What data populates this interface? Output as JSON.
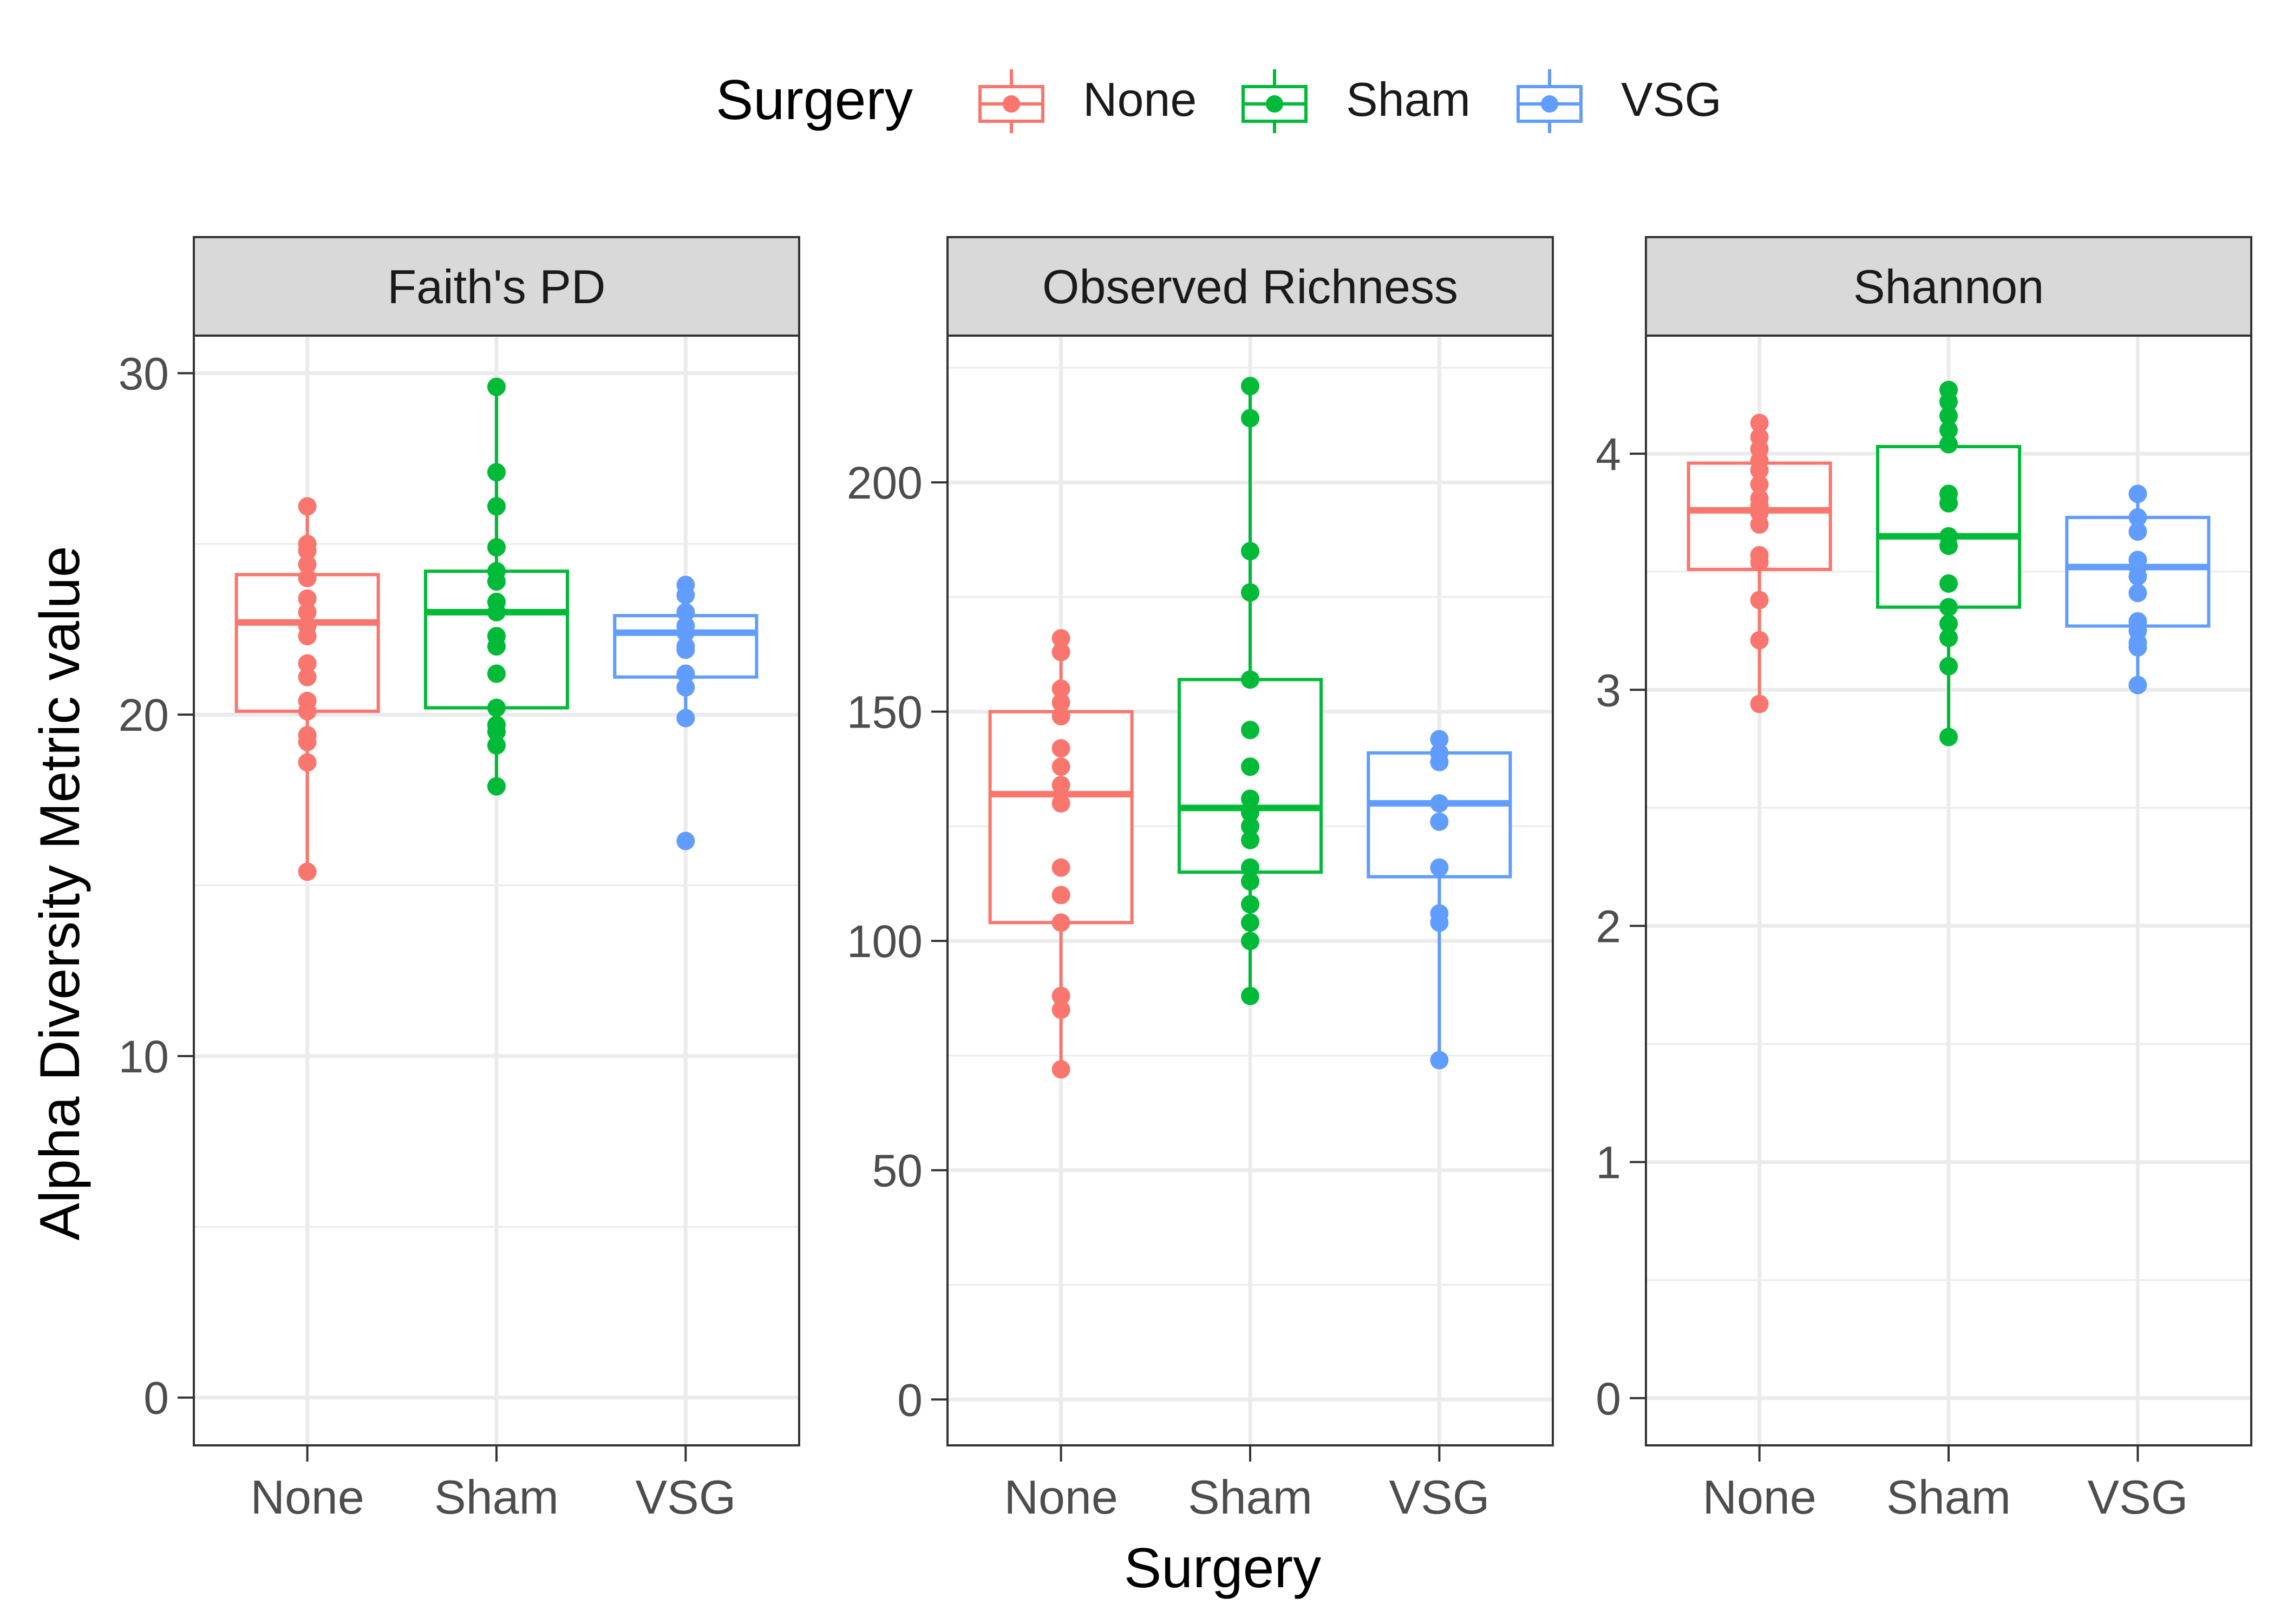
{
  "legend": {
    "title": "Surgery",
    "entries": [
      {
        "label": "None",
        "color": "#F8766D"
      },
      {
        "label": "Sham",
        "color": "#00BA38"
      },
      {
        "label": "VSG",
        "color": "#619CFF"
      }
    ]
  },
  "axes": {
    "ylabel": "Alpha Diversity Metric value",
    "xlabel": "Surgery"
  },
  "chart_data": [
    {
      "type": "box",
      "title": "Faith's PD",
      "categories": [
        "None",
        "Sham",
        "VSG"
      ],
      "ylim": [
        -1.4,
        31.1
      ],
      "yticks": [
        0,
        10,
        20,
        30
      ],
      "boxes": [
        {
          "name": "None",
          "q1": 20.1,
          "median": 22.7,
          "q3": 24.1,
          "whisker_low": 15.4,
          "whisker_high": 26.1
        },
        {
          "name": "Sham",
          "q1": 20.2,
          "median": 23.0,
          "q3": 24.2,
          "whisker_low": 17.9,
          "whisker_high": 29.6
        },
        {
          "name": "VSG",
          "q1": 21.1,
          "median": 22.4,
          "q3": 22.9,
          "whisker_low": 19.9,
          "whisker_high": 23.8
        }
      ],
      "points": [
        {
          "name": "None",
          "values": [
            26.1,
            25.0,
            24.8,
            24.4,
            24.0,
            23.4,
            23.0,
            22.6,
            22.3,
            21.5,
            21.1,
            20.4,
            20.1,
            19.4,
            19.2,
            18.6,
            15.4
          ]
        },
        {
          "name": "Sham",
          "values": [
            29.6,
            27.1,
            26.1,
            24.9,
            24.2,
            23.9,
            23.3,
            23.0,
            22.3,
            22.0,
            21.2,
            20.2,
            19.7,
            19.5,
            19.1,
            17.9
          ]
        },
        {
          "name": "VSG",
          "values": [
            23.8,
            23.5,
            23.0,
            22.6,
            22.4,
            22.0,
            21.9,
            21.2,
            20.8,
            19.9,
            16.3
          ]
        }
      ]
    },
    {
      "type": "box",
      "title": "Observed Richness",
      "categories": [
        "None",
        "Sham",
        "VSG"
      ],
      "ylim": [
        -10,
        232
      ],
      "yticks": [
        0,
        50,
        100,
        150,
        200
      ],
      "boxes": [
        {
          "name": "None",
          "q1": 104,
          "median": 132,
          "q3": 150,
          "whisker_low": 72,
          "whisker_high": 166
        },
        {
          "name": "Sham",
          "q1": 115,
          "median": 129,
          "q3": 157,
          "whisker_low": 88,
          "whisker_high": 221
        },
        {
          "name": "VSG",
          "q1": 114,
          "median": 130,
          "q3": 141,
          "whisker_low": 74,
          "whisker_high": 144
        }
      ],
      "points": [
        {
          "name": "None",
          "values": [
            166,
            163,
            155,
            152,
            149,
            142,
            138,
            134,
            130,
            116,
            110,
            104,
            88,
            85,
            72
          ]
        },
        {
          "name": "Sham",
          "values": [
            221,
            214,
            185,
            176,
            157,
            146,
            138,
            131,
            128,
            125,
            122,
            116,
            113,
            108,
            104,
            100,
            88
          ]
        },
        {
          "name": "VSG",
          "values": [
            144,
            141,
            139,
            130,
            126,
            116,
            106,
            104,
            74
          ]
        }
      ]
    },
    {
      "type": "box",
      "title": "Shannon",
      "categories": [
        "None",
        "Sham",
        "VSG"
      ],
      "ylim": [
        -0.2,
        4.5
      ],
      "yticks": [
        0,
        1,
        2,
        3,
        4
      ],
      "boxes": [
        {
          "name": "None",
          "q1": 3.51,
          "median": 3.76,
          "q3": 3.96,
          "whisker_low": 2.94,
          "whisker_high": 4.13
        },
        {
          "name": "Sham",
          "q1": 3.35,
          "median": 3.65,
          "q3": 4.03,
          "whisker_low": 2.8,
          "whisker_high": 4.27
        },
        {
          "name": "VSG",
          "q1": 3.27,
          "median": 3.52,
          "q3": 3.73,
          "whisker_low": 3.02,
          "whisker_high": 3.83
        }
      ],
      "points": [
        {
          "name": "None",
          "values": [
            4.13,
            4.07,
            4.02,
            3.97,
            3.93,
            3.87,
            3.81,
            3.78,
            3.75,
            3.7,
            3.57,
            3.54,
            3.38,
            3.21,
            2.94
          ]
        },
        {
          "name": "Sham",
          "values": [
            4.27,
            4.22,
            4.16,
            4.1,
            4.04,
            3.83,
            3.79,
            3.65,
            3.61,
            3.45,
            3.35,
            3.28,
            3.22,
            3.1,
            2.8
          ]
        },
        {
          "name": "VSG",
          "values": [
            3.83,
            3.73,
            3.67,
            3.55,
            3.52,
            3.48,
            3.41,
            3.29,
            3.25,
            3.2,
            3.18,
            3.02
          ]
        }
      ]
    }
  ]
}
